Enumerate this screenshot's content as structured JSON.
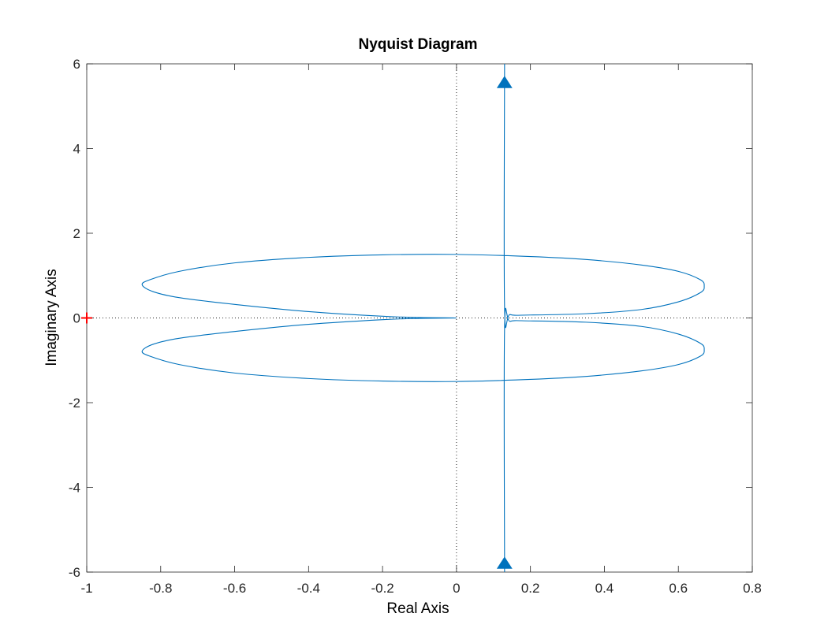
{
  "chart_data": {
    "type": "line",
    "title": "Nyquist Diagram",
    "xlabel": "Real Axis",
    "ylabel": "Imaginary Axis",
    "xlim": [
      -1,
      0.8
    ],
    "ylim": [
      -6,
      6
    ],
    "xticks": [
      "-1",
      "-0.8",
      "-0.6",
      "-0.4",
      "-0.2",
      "0",
      "0.2",
      "0.4",
      "0.6",
      "0.8"
    ],
    "xtick_values": [
      -1,
      -0.8,
      -0.6,
      -0.4,
      -0.2,
      0,
      0.2,
      0.4,
      0.6,
      0.8
    ],
    "yticks": [
      "6",
      "4",
      "2",
      "0",
      "-2",
      "-4",
      "-6"
    ],
    "ytick_values": [
      6,
      4,
      2,
      0,
      -2,
      -4,
      -6
    ],
    "grid": false,
    "reference_lines": {
      "x0_dotted": true,
      "y0_dotted": true
    },
    "critical_point": {
      "x": -1,
      "y": 0,
      "marker": "+",
      "color": "#ff0000"
    },
    "curve_color": "#0072bd",
    "series": [
      {
        "values_xy": [
          [
            0.13,
            -6.0
          ],
          [
            0.13,
            -0.25
          ],
          [
            0.145,
            -0.08
          ],
          [
            0.2,
            -0.07
          ],
          [
            0.35,
            -0.1
          ],
          [
            0.5,
            -0.2
          ],
          [
            0.6,
            -0.38
          ],
          [
            0.66,
            -0.6
          ],
          [
            0.67,
            -0.75
          ],
          [
            0.66,
            -0.9
          ],
          [
            0.6,
            -1.1
          ],
          [
            0.5,
            -1.25
          ],
          [
            0.35,
            -1.38
          ],
          [
            0.2,
            -1.45
          ],
          [
            0.0,
            -1.5
          ],
          [
            -0.2,
            -1.49
          ],
          [
            -0.4,
            -1.43
          ],
          [
            -0.6,
            -1.3
          ],
          [
            -0.75,
            -1.1
          ],
          [
            -0.83,
            -0.9
          ],
          [
            -0.85,
            -0.78
          ],
          [
            -0.82,
            -0.62
          ],
          [
            -0.75,
            -0.48
          ],
          [
            -0.6,
            -0.32
          ],
          [
            -0.4,
            -0.15
          ],
          [
            -0.2,
            -0.04
          ],
          [
            -0.1,
            -0.01
          ],
          [
            0.0,
            0.0
          ],
          [
            -0.1,
            0.01
          ],
          [
            -0.2,
            0.04
          ],
          [
            -0.4,
            0.15
          ],
          [
            -0.6,
            0.32
          ],
          [
            -0.75,
            0.48
          ],
          [
            -0.82,
            0.62
          ],
          [
            -0.85,
            0.78
          ],
          [
            -0.83,
            0.9
          ],
          [
            -0.75,
            1.1
          ],
          [
            -0.6,
            1.3
          ],
          [
            -0.4,
            1.43
          ],
          [
            -0.2,
            1.49
          ],
          [
            0.0,
            1.5
          ],
          [
            0.2,
            1.45
          ],
          [
            0.35,
            1.38
          ],
          [
            0.5,
            1.25
          ],
          [
            0.6,
            1.1
          ],
          [
            0.66,
            0.9
          ],
          [
            0.67,
            0.75
          ],
          [
            0.66,
            0.6
          ],
          [
            0.6,
            0.38
          ],
          [
            0.5,
            0.2
          ],
          [
            0.35,
            0.1
          ],
          [
            0.2,
            0.07
          ],
          [
            0.145,
            0.08
          ],
          [
            0.13,
            0.25
          ],
          [
            0.13,
            6.0
          ]
        ]
      }
    ],
    "direction_arrows": [
      {
        "x": 0.13,
        "y": 5.55,
        "direction": "up"
      },
      {
        "x": 0.13,
        "y": -5.8,
        "direction": "up"
      }
    ]
  }
}
